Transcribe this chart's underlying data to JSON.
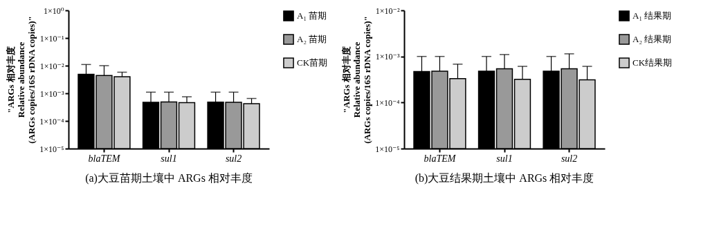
{
  "chart_data": [
    {
      "type": "bar",
      "title": "(a)大豆苗期土壤中 ARGs 相对丰度",
      "ylabel": "\"ARGs 相对丰度\nRelative abundance\n(ARGs copies/16S rDNA copies)\"",
      "categories": [
        "blaTEM",
        "sul1",
        "sul2"
      ],
      "log": true,
      "ylim": [
        1e-05,
        1
      ],
      "yticks": [
        {
          "value": 1e-05,
          "label": "1×10⁻⁵"
        },
        {
          "value": 0.0001,
          "label": "1×10⁻⁴"
        },
        {
          "value": 0.001,
          "label": "1×10⁻³"
        },
        {
          "value": 0.01,
          "label": "1×10⁻²"
        },
        {
          "value": 0.1,
          "label": "1×10⁻¹"
        },
        {
          "value": 1,
          "label": "1×10⁰"
        }
      ],
      "legend": "top right",
      "grid": false,
      "series": [
        {
          "name": "A₁ 苗期",
          "color": "#000000",
          "values": [
            0.0049,
            0.00047,
            0.00048
          ],
          "errors": [
            [
              0.0049,
              0.011
            ],
            [
              0.00047,
              0.0011
            ],
            [
              0.00048,
              0.0011
            ]
          ]
        },
        {
          "name": "A₂ 苗期",
          "color": "#999999",
          "values": [
            0.0044,
            0.00049,
            0.00047
          ],
          "errors": [
            [
              0.0044,
              0.01
            ],
            [
              0.00049,
              0.0011
            ],
            [
              0.00047,
              0.0011
            ]
          ]
        },
        {
          "name": "CK苗期",
          "color": "#cccccc",
          "values": [
            0.004,
            0.00046,
            0.00042
          ],
          "errors": [
            [
              0.004,
              0.0058
            ],
            [
              0.00046,
              0.00075
            ],
            [
              0.00042,
              0.00065
            ]
          ]
        }
      ]
    },
    {
      "type": "bar",
      "title": "(b)大豆结果期土壤中 ARGs 相对丰度",
      "ylabel": "\"ARGs 相对丰度\nRelative abundance\n(ARGs copies/16S rDNA copies)\"",
      "categories": [
        "blaTEM",
        "sul1",
        "sul2"
      ],
      "log": true,
      "ylim": [
        1e-05,
        0.01
      ],
      "yticks": [
        {
          "value": 1e-05,
          "label": "1×10⁻⁵"
        },
        {
          "value": 0.0001,
          "label": "1×10⁻⁴"
        },
        {
          "value": 0.001,
          "label": "1×10⁻³"
        },
        {
          "value": 0.01,
          "label": "1×10⁻²"
        }
      ],
      "legend": "top right",
      "grid": false,
      "series": [
        {
          "name": "A₁ 结果期",
          "color": "#000000",
          "values": [
            0.00047,
            0.00048,
            0.00048
          ],
          "errors": [
            [
              0.00047,
              0.001
            ],
            [
              0.00048,
              0.001
            ],
            [
              0.00048,
              0.001
            ]
          ]
        },
        {
          "name": "A₂ 结果期",
          "color": "#999999",
          "values": [
            0.00048,
            0.00054,
            0.00054
          ],
          "errors": [
            [
              0.00048,
              0.001
            ],
            [
              0.00054,
              0.0011
            ],
            [
              0.00054,
              0.00114
            ]
          ]
        },
        {
          "name": "CK结果期",
          "color": "#cccccc",
          "values": [
            0.00033,
            0.00032,
            0.00031
          ],
          "errors": [
            [
              0.00033,
              0.00068
            ],
            [
              0.00032,
              0.00061
            ],
            [
              0.00031,
              0.00061
            ]
          ]
        }
      ]
    }
  ]
}
